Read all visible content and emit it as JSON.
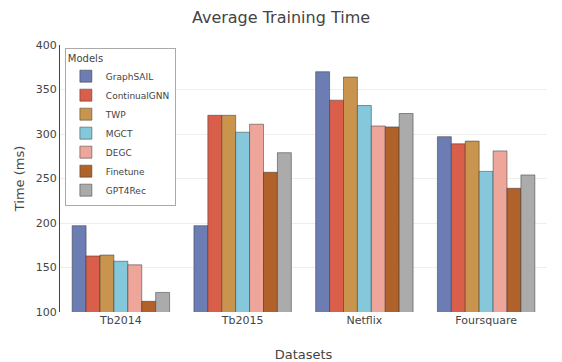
{
  "chart_data": {
    "type": "bar",
    "title": "Average Training Time",
    "x_label": "Datasets",
    "y_label": "Time (ms)",
    "categories": [
      "Tb2014",
      "Tb2015",
      "Netflix",
      "Foursquare"
    ],
    "series": [
      {
        "name": "GraphSAIL",
        "color": "#6B7DB3",
        "values": [
          197,
          197,
          370,
          297
        ]
      },
      {
        "name": "ContinualGNN",
        "color": "#D95F4B",
        "values": [
          163,
          321,
          338,
          289
        ]
      },
      {
        "name": "TWP",
        "color": "#C8944E",
        "values": [
          164,
          321,
          364,
          292
        ]
      },
      {
        "name": "MGCT",
        "color": "#85C8DC",
        "values": [
          157,
          302,
          332,
          258
        ]
      },
      {
        "name": "DEGC",
        "color": "#EEA59A",
        "values": [
          153,
          311,
          309,
          281
        ]
      },
      {
        "name": "Finetune",
        "color": "#B0622A",
        "values": [
          112,
          257,
          308,
          239
        ]
      },
      {
        "name": "GPT4Rec",
        "color": "#ABABAB",
        "values": [
          122,
          279,
          323,
          254
        ]
      }
    ],
    "legend_title": "Models",
    "legend": "upper left",
    "ylim": [
      100,
      400
    ],
    "yticks": [
      100,
      150,
      200,
      250,
      300,
      350,
      400
    ],
    "grid": true
  }
}
